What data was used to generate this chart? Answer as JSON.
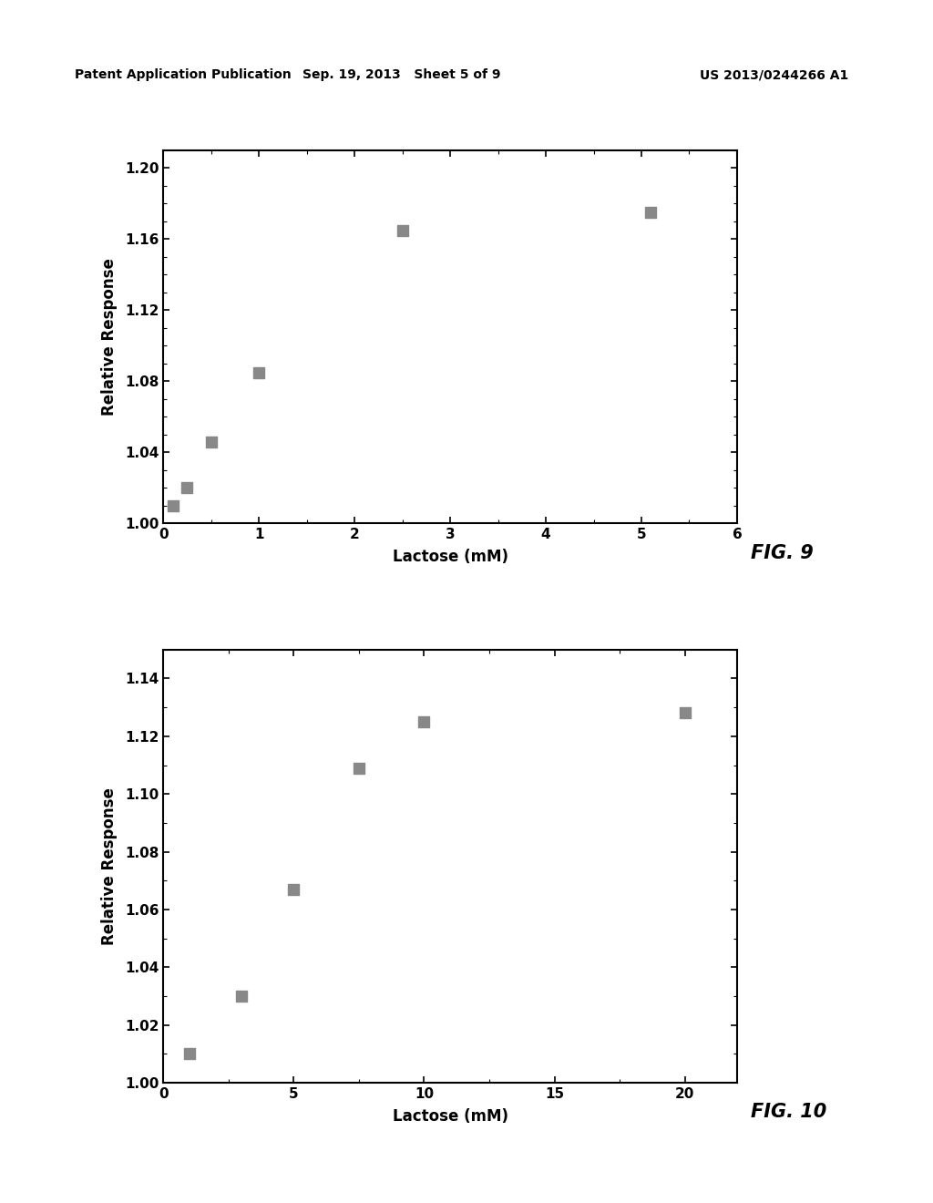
{
  "fig9": {
    "x": [
      0.1,
      0.25,
      0.5,
      1.0,
      2.5,
      5.1
    ],
    "y": [
      1.01,
      1.02,
      1.046,
      1.085,
      1.165,
      1.175
    ],
    "xlabel": "Lactose (mM)",
    "ylabel": "Relative Response",
    "xlim": [
      0,
      6
    ],
    "ylim": [
      1.0,
      1.21
    ],
    "xticks": [
      0,
      1,
      2,
      3,
      4,
      5,
      6
    ],
    "yticks": [
      1.0,
      1.04,
      1.08,
      1.12,
      1.16,
      1.2
    ],
    "fig_label": "FIG. 9"
  },
  "fig10": {
    "x": [
      1.0,
      3.0,
      5.0,
      7.5,
      10.0,
      20.0
    ],
    "y": [
      1.01,
      1.03,
      1.067,
      1.109,
      1.125,
      1.128
    ],
    "xlabel": "Lactose (mM)",
    "ylabel": "Relative Response",
    "xlim": [
      0,
      22
    ],
    "ylim": [
      1.0,
      1.15
    ],
    "xticks": [
      0,
      5,
      10,
      15,
      20
    ],
    "yticks": [
      1.0,
      1.02,
      1.04,
      1.06,
      1.08,
      1.1,
      1.12,
      1.14
    ],
    "fig_label": "FIG. 10"
  },
  "header_left": "Patent Application Publication",
  "header_mid": "Sep. 19, 2013   Sheet 5 of 9",
  "header_right": "US 2013/0244266 A1",
  "marker_color": "#888888",
  "marker_size": 70,
  "background_color": "#ffffff",
  "text_color": "#000000",
  "tick_label_fontsize": 11,
  "axis_label_fontsize": 12,
  "fig_label_fontsize": 15,
  "header_fontsize": 10
}
